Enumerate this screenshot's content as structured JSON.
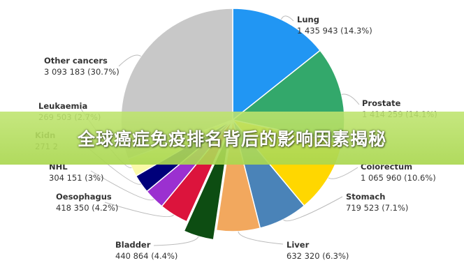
{
  "banner": {
    "title": "全球癌症免疫排名背后的影响因素揭秘"
  },
  "chart_data": {
    "type": "pie",
    "title": "",
    "start": "top-clockwise",
    "slices": [
      {
        "name": "Lung",
        "value": 1435943,
        "value_text": "1 435 943 (14.3%)",
        "percent": 14.3,
        "color": "#2196f3"
      },
      {
        "name": "Prostate",
        "value": 1414259,
        "value_text": "1 414 259 (14.1%)",
        "percent": 14.1,
        "color": "#33a86b"
      },
      {
        "name": "Colorectum",
        "value": 1065960,
        "value_text": "1 065 960 (10.6%)",
        "percent": 10.6,
        "color": "#ffd700"
      },
      {
        "name": "Stomach",
        "value": 719523,
        "value_text": "719 523 (7.1%)",
        "percent": 7.1,
        "color": "#4a83b8"
      },
      {
        "name": "Liver",
        "value": 632320,
        "value_text": "632 320 (6.3%)",
        "percent": 6.3,
        "color": "#f2a85e"
      },
      {
        "name": "Bladder",
        "value": 440864,
        "value_text": "440 864 (4.4%)",
        "percent": 4.4,
        "color": "#0d4d12",
        "exploded": true
      },
      {
        "name": "Oesophagus",
        "value": 418350,
        "value_text": "418 350 (4.2%)",
        "percent": 4.2,
        "color": "#dc143c"
      },
      {
        "name": "NHL",
        "value": 304151,
        "value_text": "304 151 (3%)",
        "percent": 3,
        "color": "#9b30d0"
      },
      {
        "name": "Kidn",
        "value": null,
        "value_text": "271 2",
        "percent": 2.7,
        "color": "#00007a"
      },
      {
        "name": "Leukaemia",
        "value": 269503,
        "value_text": "269 503 (2.7%)",
        "percent": 2.7,
        "color": "#fafaa8"
      },
      {
        "name": "Other cancers",
        "value": 3093183,
        "value_text": "3 093 183 (30.7%)",
        "percent": 30.7,
        "color": "#c8c8c8"
      }
    ]
  }
}
